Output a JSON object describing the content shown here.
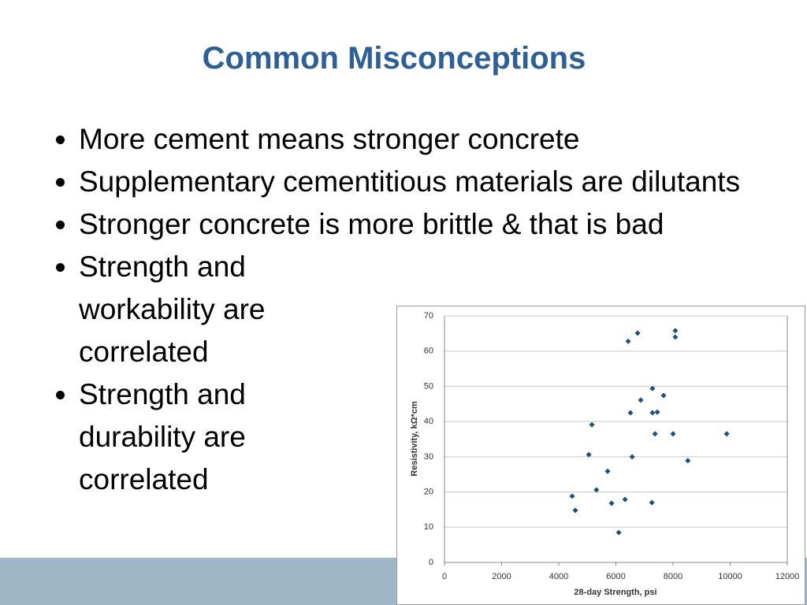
{
  "slide": {
    "title": "Common Misconceptions",
    "bullets": [
      "More cement means stronger concrete",
      "Supplementary cementitious materials are dilutants",
      "Stronger concrete is more brittle & that is bad",
      "Strength and workability are correlated",
      "Strength and durability are correlated"
    ]
  },
  "chart_data": {
    "type": "scatter",
    "x_label": "28-day Strength, psi",
    "y_label": "Resistivity, kΩ*cm",
    "x": [
      4470,
      4580,
      5050,
      5160,
      5320,
      5710,
      5850,
      6100,
      6320,
      6430,
      6510,
      6570,
      6760,
      6870,
      7260,
      7280,
      7280,
      7370,
      7450,
      7670,
      8000,
      8080,
      8080,
      8520,
      9880
    ],
    "values": [
      18.8,
      14.8,
      30.6,
      39.1,
      20.6,
      25.9,
      16.8,
      8.5,
      17.9,
      62.8,
      42.5,
      30.0,
      65.1,
      46.1,
      17.0,
      49.4,
      42.5,
      36.5,
      42.7,
      47.4,
      36.5,
      65.8,
      64.0,
      28.9,
      36.5
    ],
    "color": "#1f4e79",
    "xlim": [
      0,
      12000
    ],
    "xticks": [
      0,
      2000,
      4000,
      6000,
      8000,
      10000,
      12000
    ],
    "ylim": [
      0,
      70
    ],
    "yticks": [
      0,
      10,
      20,
      30,
      40,
      50,
      60,
      70
    ],
    "grid": true
  }
}
